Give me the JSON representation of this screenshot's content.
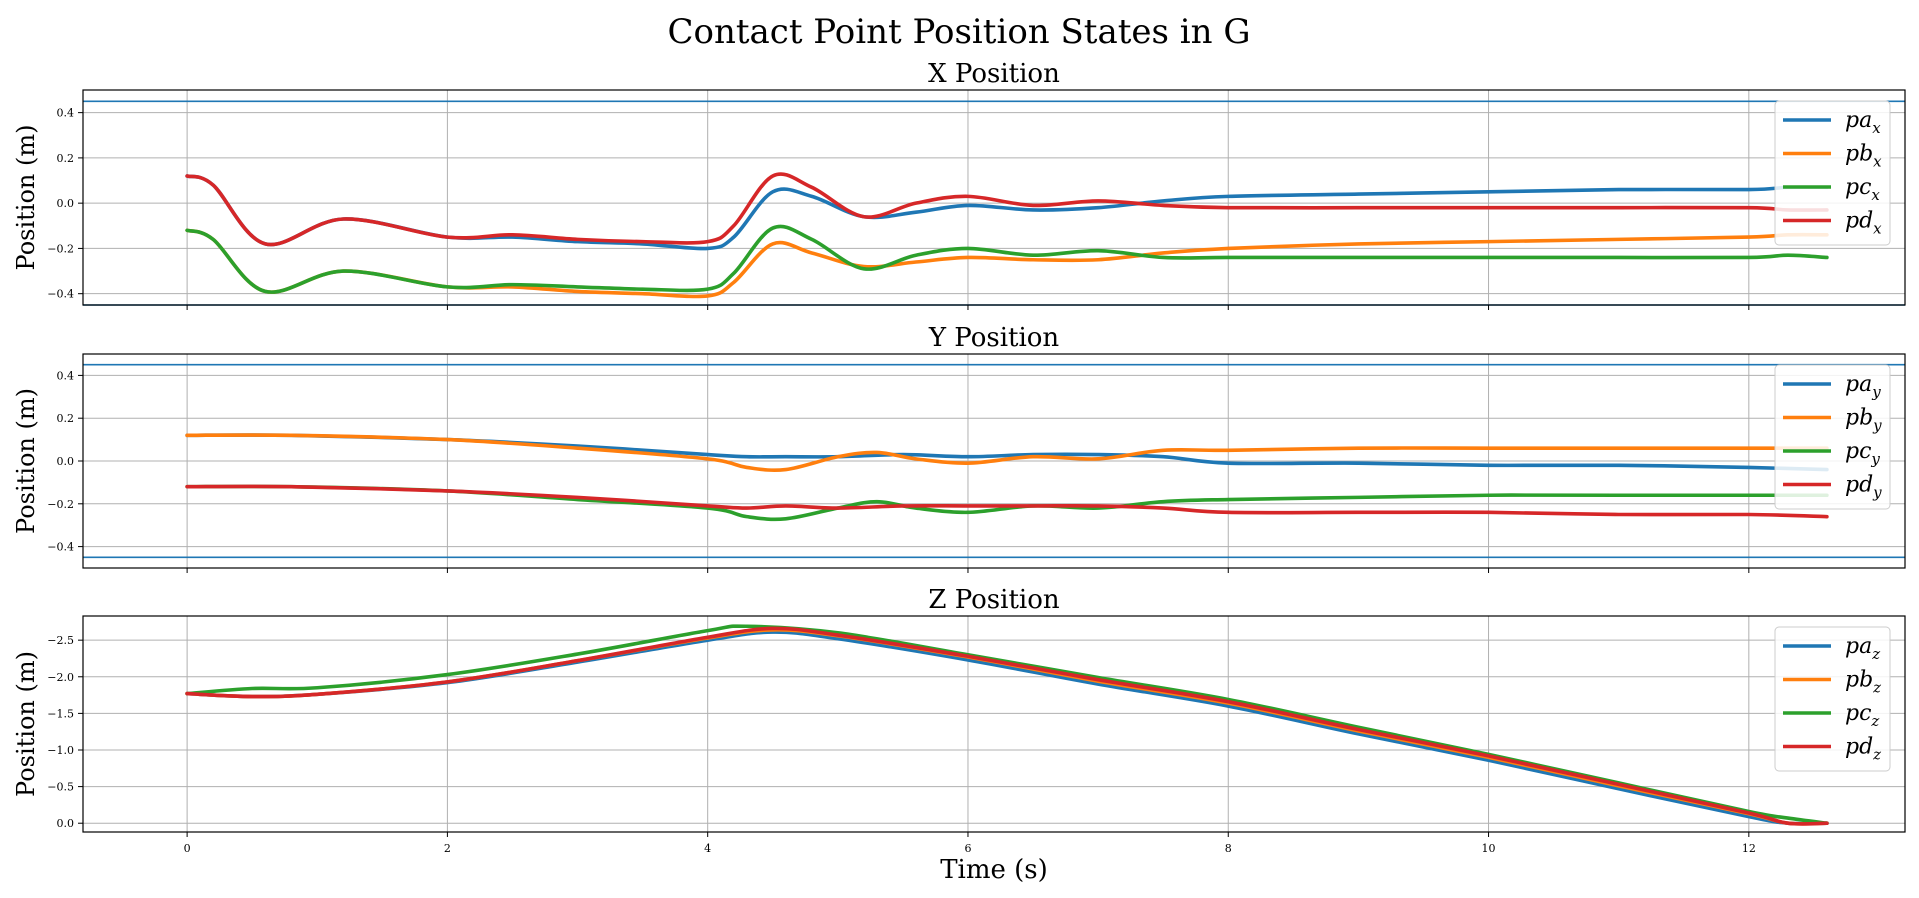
{
  "chart_data": {
    "type": "line",
    "title": "Contact Point Position States in G",
    "xlabel": "Time (s)",
    "xlim": [
      -0.8,
      13.2
    ],
    "xticks": [
      0,
      2,
      4,
      6,
      8,
      10,
      12
    ],
    "grid": true,
    "legend_position": "right",
    "panels": [
      {
        "title": "X Position",
        "ylabel": "Position (m)",
        "ylim": [
          -0.45,
          0.5
        ],
        "yticks": [
          -0.4,
          -0.2,
          0.0,
          0.2,
          0.4
        ],
        "ytick_labels": [
          "−0.4",
          "−0.2",
          "0.0",
          "0.2",
          "0.4"
        ],
        "reference_lines": [
          0.45,
          -0.45
        ],
        "axis": "x",
        "series": [
          {
            "name": "pa",
            "color": "#1f77b4",
            "x": [
              0,
              0.2,
              0.6,
              1.2,
              2.0,
              2.5,
              3.0,
              3.5,
              4.0,
              4.2,
              4.5,
              4.8,
              5.2,
              5.6,
              6.0,
              6.5,
              7.0,
              7.5,
              8.0,
              9.0,
              10.0,
              11.0,
              12.0,
              12.3,
              12.6
            ],
            "y": [
              0.12,
              0.08,
              -0.18,
              -0.07,
              -0.15,
              -0.15,
              -0.17,
              -0.18,
              -0.2,
              -0.15,
              0.05,
              0.03,
              -0.06,
              -0.04,
              -0.01,
              -0.03,
              -0.02,
              0.01,
              0.03,
              0.04,
              0.05,
              0.06,
              0.06,
              0.07,
              0.07
            ]
          },
          {
            "name": "pb",
            "color": "#ff7f0e",
            "x": [
              0,
              0.2,
              0.6,
              1.2,
              2.0,
              2.5,
              3.0,
              3.5,
              4.0,
              4.2,
              4.5,
              4.8,
              5.2,
              5.6,
              6.0,
              6.5,
              7.0,
              7.5,
              8.0,
              9.0,
              10.0,
              11.0,
              12.0,
              12.3,
              12.6
            ],
            "y": [
              -0.12,
              -0.16,
              -0.39,
              -0.3,
              -0.37,
              -0.37,
              -0.39,
              -0.4,
              -0.41,
              -0.35,
              -0.18,
              -0.22,
              -0.28,
              -0.26,
              -0.24,
              -0.25,
              -0.25,
              -0.22,
              -0.2,
              -0.18,
              -0.17,
              -0.16,
              -0.15,
              -0.14,
              -0.14
            ]
          },
          {
            "name": "pc",
            "color": "#2ca02c",
            "x": [
              0,
              0.2,
              0.6,
              1.2,
              2.0,
              2.5,
              3.0,
              3.5,
              4.0,
              4.2,
              4.5,
              4.8,
              5.2,
              5.6,
              6.0,
              6.5,
              7.0,
              7.5,
              8.0,
              9.0,
              10.0,
              11.0,
              12.0,
              12.3,
              12.6
            ],
            "y": [
              -0.12,
              -0.16,
              -0.39,
              -0.3,
              -0.37,
              -0.36,
              -0.37,
              -0.38,
              -0.38,
              -0.31,
              -0.11,
              -0.16,
              -0.29,
              -0.23,
              -0.2,
              -0.23,
              -0.21,
              -0.24,
              -0.24,
              -0.24,
              -0.24,
              -0.24,
              -0.24,
              -0.23,
              -0.24
            ]
          },
          {
            "name": "pd",
            "color": "#d62728",
            "x": [
              0,
              0.2,
              0.6,
              1.2,
              2.0,
              2.5,
              3.0,
              3.5,
              4.0,
              4.2,
              4.5,
              4.8,
              5.2,
              5.6,
              6.0,
              6.5,
              7.0,
              7.5,
              8.0,
              9.0,
              10.0,
              11.0,
              12.0,
              12.3,
              12.6
            ],
            "y": [
              0.12,
              0.08,
              -0.18,
              -0.07,
              -0.15,
              -0.14,
              -0.16,
              -0.17,
              -0.17,
              -0.1,
              0.12,
              0.07,
              -0.06,
              0.0,
              0.03,
              -0.01,
              0.01,
              -0.01,
              -0.02,
              -0.02,
              -0.02,
              -0.02,
              -0.02,
              -0.03,
              -0.03
            ]
          }
        ]
      },
      {
        "title": "Y Position",
        "ylabel": "Position (m)",
        "ylim": [
          -0.5,
          0.5
        ],
        "yticks": [
          -0.4,
          -0.2,
          0.0,
          0.2,
          0.4
        ],
        "ytick_labels": [
          "−0.4",
          "−0.2",
          "0.0",
          "0.2",
          "0.4"
        ],
        "reference_lines": [
          0.45,
          -0.45
        ],
        "axis": "y",
        "series": [
          {
            "name": "pa",
            "color": "#1f77b4",
            "x": [
              0,
              0.8,
              2.0,
              3.0,
              4.0,
              4.3,
              4.6,
              5.0,
              5.5,
              6.0,
              6.5,
              7.0,
              7.5,
              8.0,
              9.0,
              10.0,
              11.0,
              12.0,
              12.6
            ],
            "y": [
              0.12,
              0.12,
              0.1,
              0.07,
              0.03,
              0.02,
              0.02,
              0.02,
              0.03,
              0.02,
              0.03,
              0.03,
              0.02,
              -0.01,
              -0.01,
              -0.02,
              -0.02,
              -0.03,
              -0.04
            ]
          },
          {
            "name": "pb",
            "color": "#ff7f0e",
            "x": [
              0,
              0.8,
              2.0,
              3.0,
              4.0,
              4.3,
              4.6,
              5.0,
              5.3,
              5.6,
              6.0,
              6.5,
              7.0,
              7.5,
              8.0,
              9.0,
              10.0,
              11.0,
              12.0,
              12.6
            ],
            "y": [
              0.12,
              0.12,
              0.1,
              0.06,
              0.01,
              -0.03,
              -0.04,
              0.02,
              0.04,
              0.01,
              -0.01,
              0.02,
              0.01,
              0.05,
              0.05,
              0.06,
              0.06,
              0.06,
              0.06,
              0.06
            ]
          },
          {
            "name": "pc",
            "color": "#2ca02c",
            "x": [
              0,
              0.8,
              2.0,
              3.0,
              4.0,
              4.3,
              4.6,
              5.0,
              5.3,
              5.6,
              6.0,
              6.5,
              7.0,
              7.5,
              8.0,
              9.0,
              10.0,
              11.0,
              12.0,
              12.6
            ],
            "y": [
              -0.12,
              -0.12,
              -0.14,
              -0.18,
              -0.22,
              -0.26,
              -0.27,
              -0.22,
              -0.19,
              -0.22,
              -0.24,
              -0.21,
              -0.22,
              -0.19,
              -0.18,
              -0.17,
              -0.16,
              -0.16,
              -0.16,
              -0.16
            ]
          },
          {
            "name": "pd",
            "color": "#d62728",
            "x": [
              0,
              0.8,
              2.0,
              3.0,
              4.0,
              4.3,
              4.6,
              5.0,
              5.5,
              6.0,
              6.5,
              7.0,
              7.5,
              8.0,
              9.0,
              10.0,
              11.0,
              12.0,
              12.6
            ],
            "y": [
              -0.12,
              -0.12,
              -0.14,
              -0.17,
              -0.21,
              -0.22,
              -0.21,
              -0.22,
              -0.21,
              -0.21,
              -0.21,
              -0.21,
              -0.22,
              -0.24,
              -0.24,
              -0.24,
              -0.25,
              -0.25,
              -0.26
            ]
          }
        ]
      },
      {
        "title": "Z Position",
        "ylabel": "Position (m)",
        "ylim": [
          0.12,
          -2.83
        ],
        "inverted": true,
        "yticks": [
          0.0,
          -0.5,
          -1.0,
          -1.5,
          -2.0,
          -2.5
        ],
        "ytick_labels": [
          "0.0",
          "−0.5",
          "−1.0",
          "−1.5",
          "−2.0",
          "−2.5"
        ],
        "reference_lines": [],
        "axis": "z",
        "series": [
          {
            "name": "pa",
            "color": "#1f77b4",
            "x": [
              0,
              0.5,
              1.0,
              2.0,
              3.0,
              4.0,
              4.5,
              5.0,
              6.0,
              7.0,
              8.0,
              9.0,
              10.0,
              11.0,
              12.0,
              12.3,
              12.6
            ],
            "y": [
              -1.77,
              -1.73,
              -1.76,
              -1.92,
              -2.2,
              -2.5,
              -2.61,
              -2.52,
              -2.23,
              -1.9,
              -1.6,
              -1.22,
              -0.86,
              -0.47,
              -0.09,
              0.0,
              0.0
            ]
          },
          {
            "name": "pb",
            "color": "#ff7f0e",
            "x": [
              0,
              0.5,
              1.0,
              2.0,
              3.0,
              4.0,
              4.5,
              5.0,
              6.0,
              7.0,
              8.0,
              9.0,
              10.0,
              11.0,
              12.0,
              12.3,
              12.6
            ],
            "y": [
              -1.77,
              -1.73,
              -1.76,
              -1.93,
              -2.22,
              -2.53,
              -2.64,
              -2.56,
              -2.27,
              -1.94,
              -1.64,
              -1.26,
              -0.9,
              -0.51,
              -0.13,
              0.0,
              0.0
            ]
          },
          {
            "name": "pc",
            "color": "#2ca02c",
            "x": [
              0,
              0.5,
              1.0,
              2.0,
              3.0,
              4.0,
              4.3,
              5.0,
              6.0,
              7.0,
              8.0,
              9.0,
              10.0,
              11.0,
              12.0,
              12.3,
              12.6
            ],
            "y": [
              -1.77,
              -1.84,
              -1.85,
              -2.03,
              -2.31,
              -2.63,
              -2.69,
              -2.6,
              -2.3,
              -1.99,
              -1.69,
              -1.31,
              -0.94,
              -0.55,
              -0.16,
              -0.07,
              0.0
            ]
          },
          {
            "name": "pd",
            "color": "#d62728",
            "x": [
              0,
              0.5,
              1.0,
              2.0,
              3.0,
              4.0,
              4.5,
              5.0,
              6.0,
              7.0,
              8.0,
              9.0,
              10.0,
              11.0,
              12.0,
              12.3,
              12.6
            ],
            "y": [
              -1.77,
              -1.73,
              -1.76,
              -1.93,
              -2.22,
              -2.54,
              -2.66,
              -2.57,
              -2.28,
              -1.96,
              -1.66,
              -1.28,
              -0.92,
              -0.53,
              -0.14,
              0.0,
              0.0
            ]
          }
        ]
      }
    ]
  }
}
